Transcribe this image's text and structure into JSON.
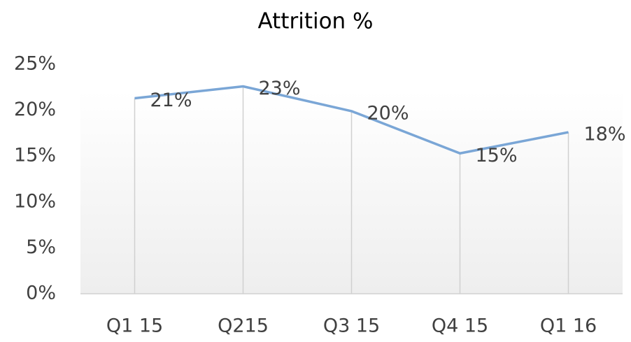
{
  "chart_data": {
    "type": "line",
    "title": "Attrition %",
    "categories": [
      "Q1 15",
      "Q215",
      "Q3 15",
      "Q4 15",
      "Q1 16"
    ],
    "series": [
      {
        "name": "Attrition %",
        "color": "#7aa6d6",
        "values": [
          21.3,
          22.6,
          19.9,
          15.3,
          17.6
        ],
        "value_labels": [
          "21%",
          "23%",
          "20%",
          "15%",
          "18%"
        ]
      }
    ],
    "ylim": [
      0,
      25
    ],
    "yticks": [
      {
        "value": 0,
        "label": "0%"
      },
      {
        "value": 5,
        "label": "5%"
      },
      {
        "value": 10,
        "label": "10%"
      },
      {
        "value": 15,
        "label": "15%"
      },
      {
        "value": 20,
        "label": "20%"
      },
      {
        "value": 25,
        "label": "25%"
      }
    ],
    "grid": false
  }
}
